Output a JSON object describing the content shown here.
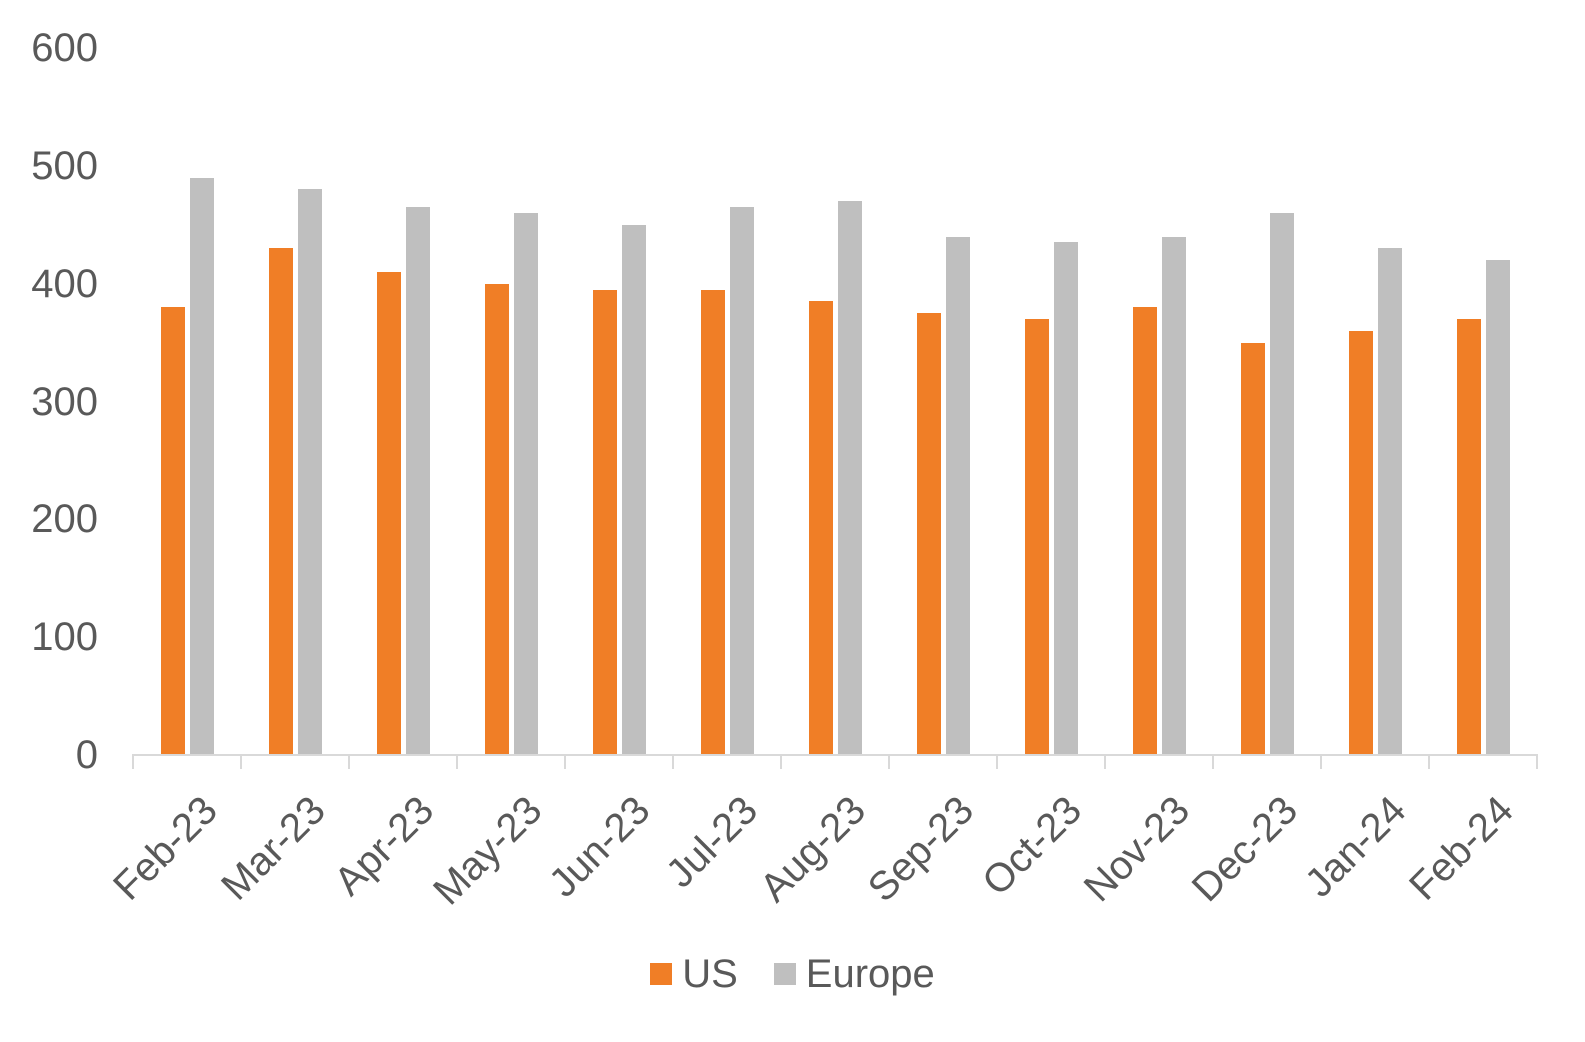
{
  "chart_data": {
    "type": "bar",
    "title": "",
    "xlabel": "",
    "ylabel": "",
    "categories": [
      "Feb-23",
      "Mar-23",
      "Apr-23",
      "May-23",
      "Jun-23",
      "Jul-23",
      "Aug-23",
      "Sep-23",
      "Oct-23",
      "Nov-23",
      "Dec-23",
      "Jan-24",
      "Feb-24"
    ],
    "series": [
      {
        "name": "US",
        "color": "#F07E26",
        "values": [
          380,
          430,
          410,
          400,
          395,
          395,
          385,
          375,
          370,
          380,
          350,
          360,
          370
        ]
      },
      {
        "name": "Europe",
        "color": "#BFBFBF",
        "values": [
          490,
          480,
          465,
          460,
          450,
          465,
          470,
          440,
          435,
          440,
          460,
          430,
          420
        ]
      }
    ],
    "ylim": [
      0,
      600
    ],
    "yticks": [
      0,
      100,
      200,
      300,
      400,
      500,
      600
    ],
    "grid": false,
    "legend_position": "bottom",
    "colors": {
      "us_bar": "#F07E26",
      "europe_bar": "#BFBFBF",
      "axis_line": "#D9D9D9",
      "tick_text": "#595959",
      "background": "#FFFFFF"
    }
  }
}
